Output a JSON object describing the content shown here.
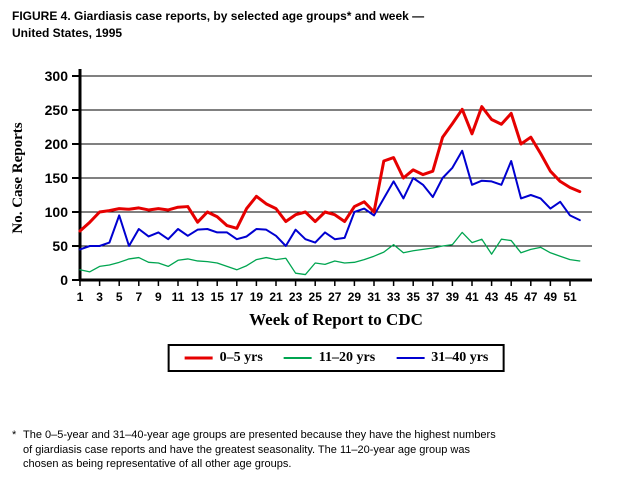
{
  "figure": {
    "title": "FIGURE 4. Giardiasis case reports, by selected age groups* and week —\nUnited States, 1995"
  },
  "footnote": {
    "marker": "*",
    "text": "The 0–5-year and 31–40-year age groups are presented because they have the highest numbers\nof giardiasis case reports and have the greatest seasonality. The 11–20-year age group was\nchosen as being representative of all other age groups."
  },
  "chart_data": {
    "type": "line",
    "title": "FIGURE 4. Giardiasis case reports, by selected age groups and week — United States, 1995",
    "xlabel": "Week of Report to CDC",
    "ylabel": "No. Case Reports",
    "ylim": [
      0,
      300
    ],
    "ytick_step": 50,
    "xtick_labels": [
      1,
      3,
      5,
      7,
      9,
      11,
      13,
      15,
      17,
      19,
      21,
      23,
      25,
      27,
      29,
      31,
      33,
      35,
      37,
      39,
      41,
      43,
      45,
      47,
      49,
      51
    ],
    "grid": "horizontal",
    "legend_position": "bottom",
    "x": [
      1,
      2,
      3,
      4,
      5,
      6,
      7,
      8,
      9,
      10,
      11,
      12,
      13,
      14,
      15,
      16,
      17,
      18,
      19,
      20,
      21,
      22,
      23,
      24,
      25,
      26,
      27,
      28,
      29,
      30,
      31,
      32,
      33,
      34,
      35,
      36,
      37,
      38,
      39,
      40,
      41,
      42,
      43,
      44,
      45,
      46,
      47,
      48,
      49,
      50,
      51,
      52
    ],
    "series": [
      {
        "name": "0–5 yrs",
        "color": "#e60000",
        "width": 3,
        "values": [
          72,
          85,
          100,
          102,
          105,
          104,
          106,
          103,
          105,
          103,
          107,
          108,
          85,
          100,
          93,
          80,
          76,
          105,
          123,
          112,
          105,
          86,
          96,
          100,
          86,
          100,
          96,
          86,
          108,
          115,
          100,
          175,
          180,
          150,
          162,
          155,
          160,
          210,
          230,
          251,
          215,
          255,
          236,
          229,
          245,
          200,
          210,
          186,
          160,
          145,
          136,
          130
        ]
      },
      {
        "name": "11–20 yrs",
        "color": "#00a550",
        "width": 1.3,
        "values": [
          15,
          12,
          20,
          22,
          26,
          31,
          33,
          26,
          25,
          20,
          29,
          31,
          28,
          27,
          25,
          20,
          15,
          21,
          30,
          33,
          30,
          32,
          10,
          8,
          25,
          23,
          28,
          25,
          26,
          30,
          35,
          41,
          52,
          40,
          43,
          45,
          47,
          50,
          52,
          70,
          55,
          60,
          38,
          60,
          58,
          40,
          45,
          48,
          40,
          35,
          30,
          28
        ]
      },
      {
        "name": "31–40 yrs",
        "color": "#0000d0",
        "width": 2,
        "values": [
          45,
          50,
          50,
          55,
          95,
          50,
          75,
          64,
          70,
          60,
          75,
          65,
          74,
          75,
          70,
          70,
          60,
          64,
          75,
          74,
          65,
          50,
          74,
          60,
          55,
          70,
          60,
          62,
          100,
          105,
          95,
          120,
          145,
          120,
          150,
          140,
          122,
          150,
          165,
          190,
          140,
          146,
          145,
          140,
          175,
          120,
          125,
          120,
          105,
          115,
          95,
          88
        ]
      }
    ]
  }
}
